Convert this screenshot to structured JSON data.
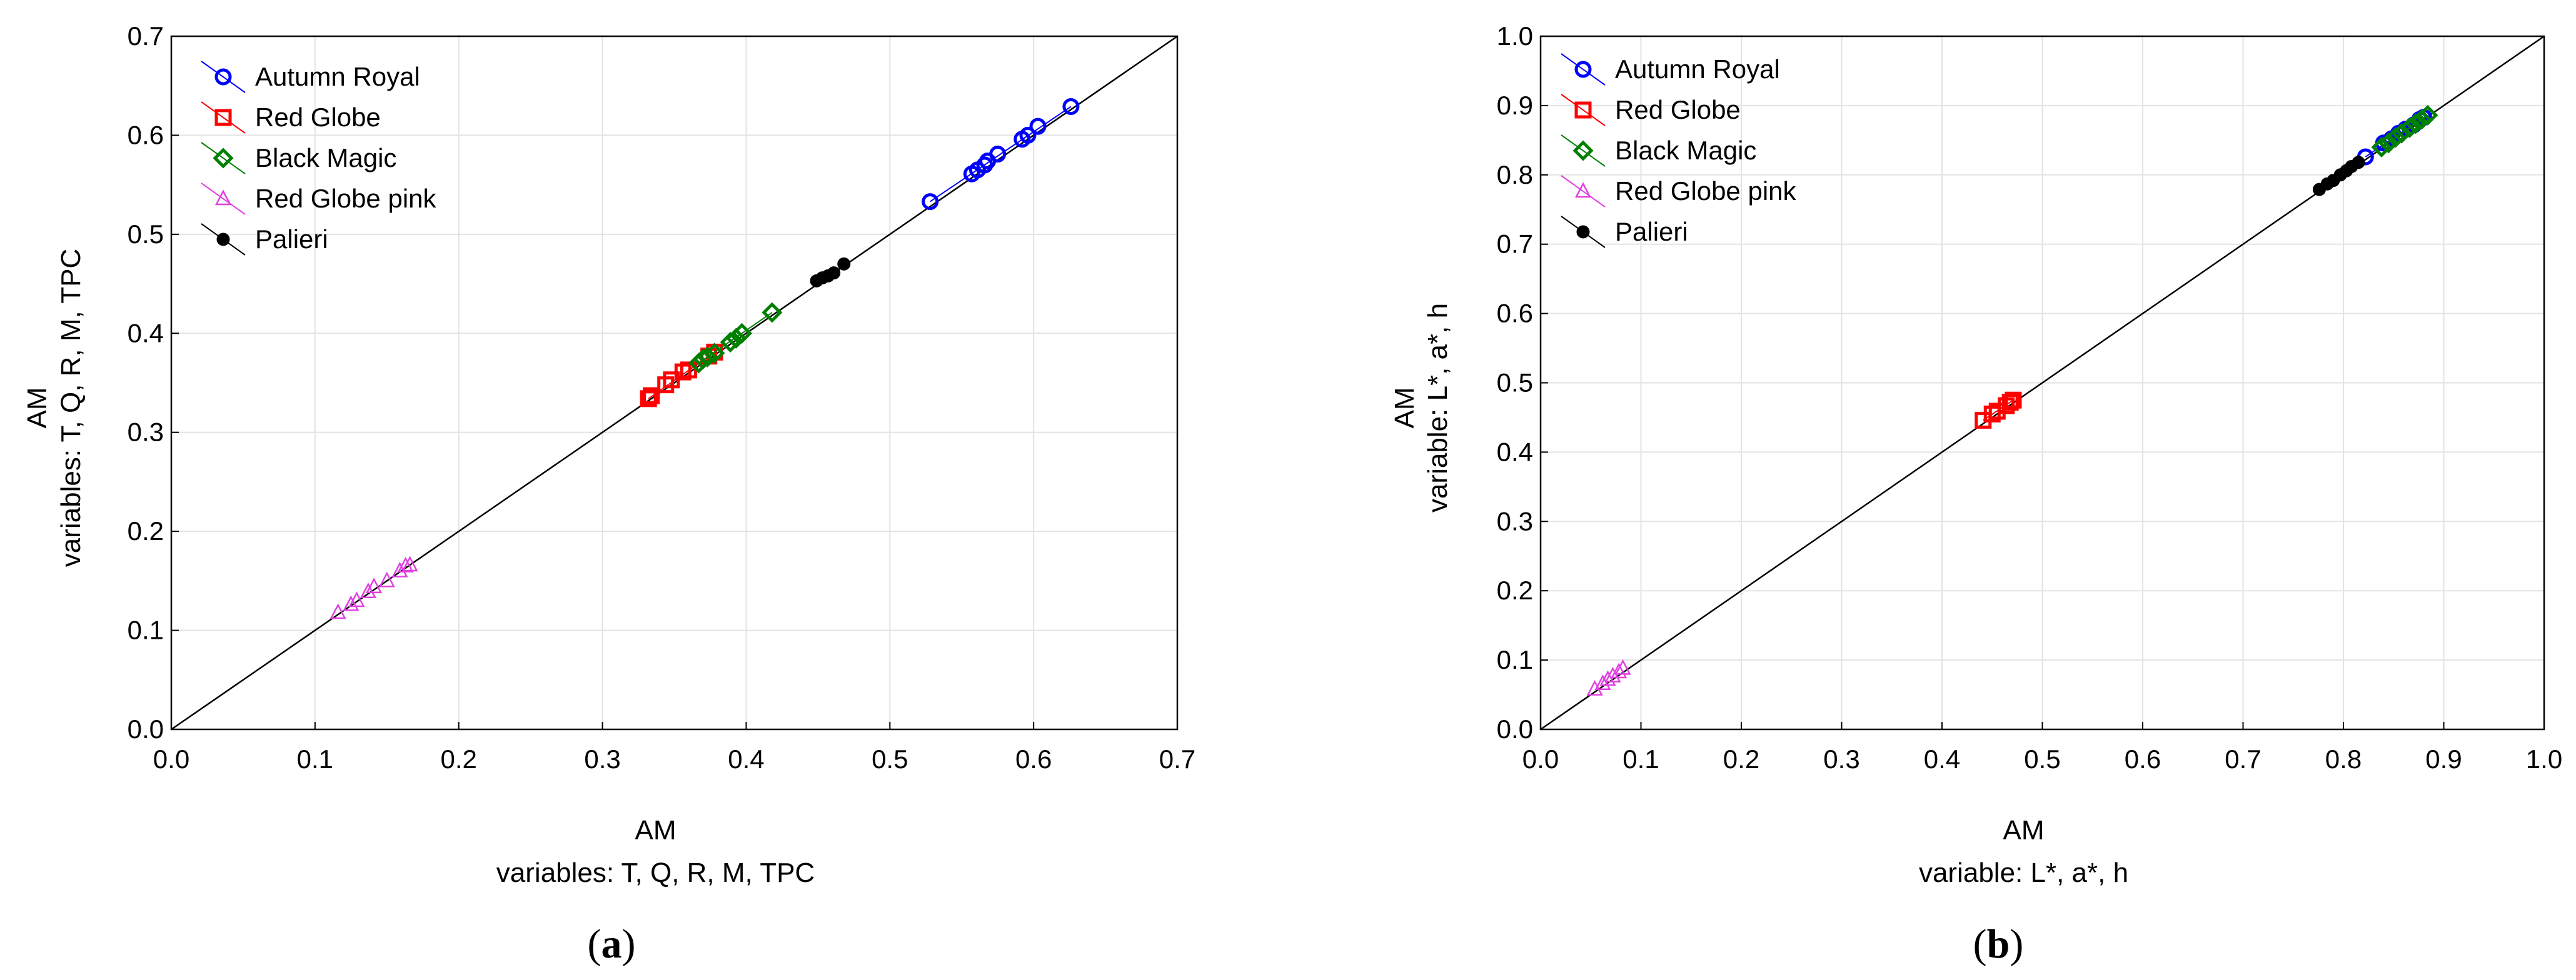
{
  "chart_data": [
    {
      "type": "scatter",
      "panel_label": {
        "open": "(",
        "letter": "a",
        "close": ")"
      },
      "xlabel": [
        "AM",
        "variables: T, Q, R, M, TPC"
      ],
      "ylabel": [
        "AM",
        "variables: T, Q, R, M, TPC"
      ],
      "xlim": [
        0,
        0.7
      ],
      "ylim": [
        0,
        0.7
      ],
      "xticks": [
        "0.0",
        "0.1",
        "0.2",
        "0.3",
        "0.4",
        "0.5",
        "0.6",
        "0.7"
      ],
      "yticks": [
        "0.0",
        "0.1",
        "0.2",
        "0.3",
        "0.4",
        "0.5",
        "0.6",
        "0.7"
      ],
      "grid": true,
      "legend_position": "top-left",
      "reference_line": "y = x",
      "series": [
        {
          "name": "Autumn Royal",
          "color": "#0000ff",
          "marker": "circle",
          "points": [
            [
              0.528,
              0.533
            ],
            [
              0.557,
              0.561
            ],
            [
              0.561,
              0.565
            ],
            [
              0.566,
              0.57
            ],
            [
              0.568,
              0.574
            ],
            [
              0.575,
              0.581
            ],
            [
              0.592,
              0.596
            ],
            [
              0.596,
              0.6
            ],
            [
              0.603,
              0.609
            ],
            [
              0.626,
              0.629
            ]
          ]
        },
        {
          "name": "Red Globe",
          "color": "#ff0000",
          "marker": "square",
          "points": [
            [
              0.332,
              0.334
            ],
            [
              0.334,
              0.337
            ],
            [
              0.344,
              0.348
            ],
            [
              0.348,
              0.353
            ],
            [
              0.356,
              0.361
            ],
            [
              0.36,
              0.363
            ],
            [
              0.374,
              0.377
            ],
            [
              0.378,
              0.381
            ]
          ]
        },
        {
          "name": "Black Magic",
          "color": "#008000",
          "marker": "diamond",
          "points": [
            [
              0.367,
              0.37
            ],
            [
              0.37,
              0.374
            ],
            [
              0.373,
              0.376
            ],
            [
              0.378,
              0.38
            ],
            [
              0.389,
              0.391
            ],
            [
              0.393,
              0.395
            ],
            [
              0.397,
              0.4
            ],
            [
              0.418,
              0.421
            ]
          ]
        },
        {
          "name": "Red Globe pink",
          "color": "#e040e0",
          "marker": "triangle",
          "points": [
            [
              0.116,
              0.118
            ],
            [
              0.125,
              0.126
            ],
            [
              0.129,
              0.13
            ],
            [
              0.137,
              0.139
            ],
            [
              0.141,
              0.144
            ],
            [
              0.15,
              0.15
            ],
            [
              0.159,
              0.16
            ],
            [
              0.163,
              0.165
            ],
            [
              0.166,
              0.166
            ]
          ]
        },
        {
          "name": "Palieri",
          "color": "#000000",
          "marker": "dot",
          "points": [
            [
              0.449,
              0.453
            ],
            [
              0.453,
              0.456
            ],
            [
              0.457,
              0.458
            ],
            [
              0.461,
              0.461
            ],
            [
              0.468,
              0.47
            ]
          ]
        }
      ]
    },
    {
      "type": "scatter",
      "panel_label": {
        "open": "(",
        "letter": "b",
        "close": ")"
      },
      "xlabel": [
        "AM",
        "variable: L*, a*, h"
      ],
      "ylabel": [
        "AM",
        "variable: L*, a*, h"
      ],
      "xlim": [
        0,
        1.0
      ],
      "ylim": [
        0,
        1.0
      ],
      "xticks": [
        "0.0",
        "0.1",
        "0.2",
        "0.3",
        "0.4",
        "0.5",
        "0.6",
        "0.7",
        "0.8",
        "0.9",
        "1.0"
      ],
      "yticks": [
        "0.0",
        "0.1",
        "0.2",
        "0.3",
        "0.4",
        "0.5",
        "0.6",
        "0.7",
        "0.8",
        "0.9",
        "1.0"
      ],
      "grid": true,
      "legend_position": "top-left",
      "reference_line": "y = x",
      "series": [
        {
          "name": "Autumn Royal",
          "color": "#0000ff",
          "marker": "circle",
          "points": [
            [
              0.822,
              0.826
            ],
            [
              0.84,
              0.846
            ],
            [
              0.848,
              0.852
            ],
            [
              0.855,
              0.86
            ],
            [
              0.862,
              0.866
            ],
            [
              0.87,
              0.872
            ],
            [
              0.876,
              0.88
            ],
            [
              0.88,
              0.883
            ]
          ]
        },
        {
          "name": "Red Globe",
          "color": "#ff0000",
          "marker": "square",
          "points": [
            [
              0.441,
              0.446
            ],
            [
              0.45,
              0.455
            ],
            [
              0.455,
              0.459
            ],
            [
              0.464,
              0.467
            ],
            [
              0.468,
              0.472
            ],
            [
              0.471,
              0.475
            ]
          ]
        },
        {
          "name": "Black Magic",
          "color": "#008000",
          "marker": "diamond",
          "points": [
            [
              0.838,
              0.84
            ],
            [
              0.845,
              0.846
            ],
            [
              0.852,
              0.854
            ],
            [
              0.858,
              0.86
            ],
            [
              0.866,
              0.868
            ],
            [
              0.872,
              0.874
            ],
            [
              0.878,
              0.88
            ],
            [
              0.884,
              0.886
            ]
          ]
        },
        {
          "name": "Red Globe pink",
          "color": "#e040e0",
          "marker": "triangle",
          "points": [
            [
              0.054,
              0.058
            ],
            [
              0.062,
              0.066
            ],
            [
              0.067,
              0.072
            ],
            [
              0.072,
              0.077
            ],
            [
              0.078,
              0.083
            ],
            [
              0.082,
              0.088
            ]
          ]
        },
        {
          "name": "Palieri",
          "color": "#000000",
          "marker": "dot",
          "points": [
            [
              0.776,
              0.779
            ],
            [
              0.784,
              0.787
            ],
            [
              0.79,
              0.792
            ],
            [
              0.797,
              0.8
            ],
            [
              0.803,
              0.806
            ],
            [
              0.808,
              0.812
            ],
            [
              0.815,
              0.818
            ]
          ]
        }
      ]
    }
  ]
}
